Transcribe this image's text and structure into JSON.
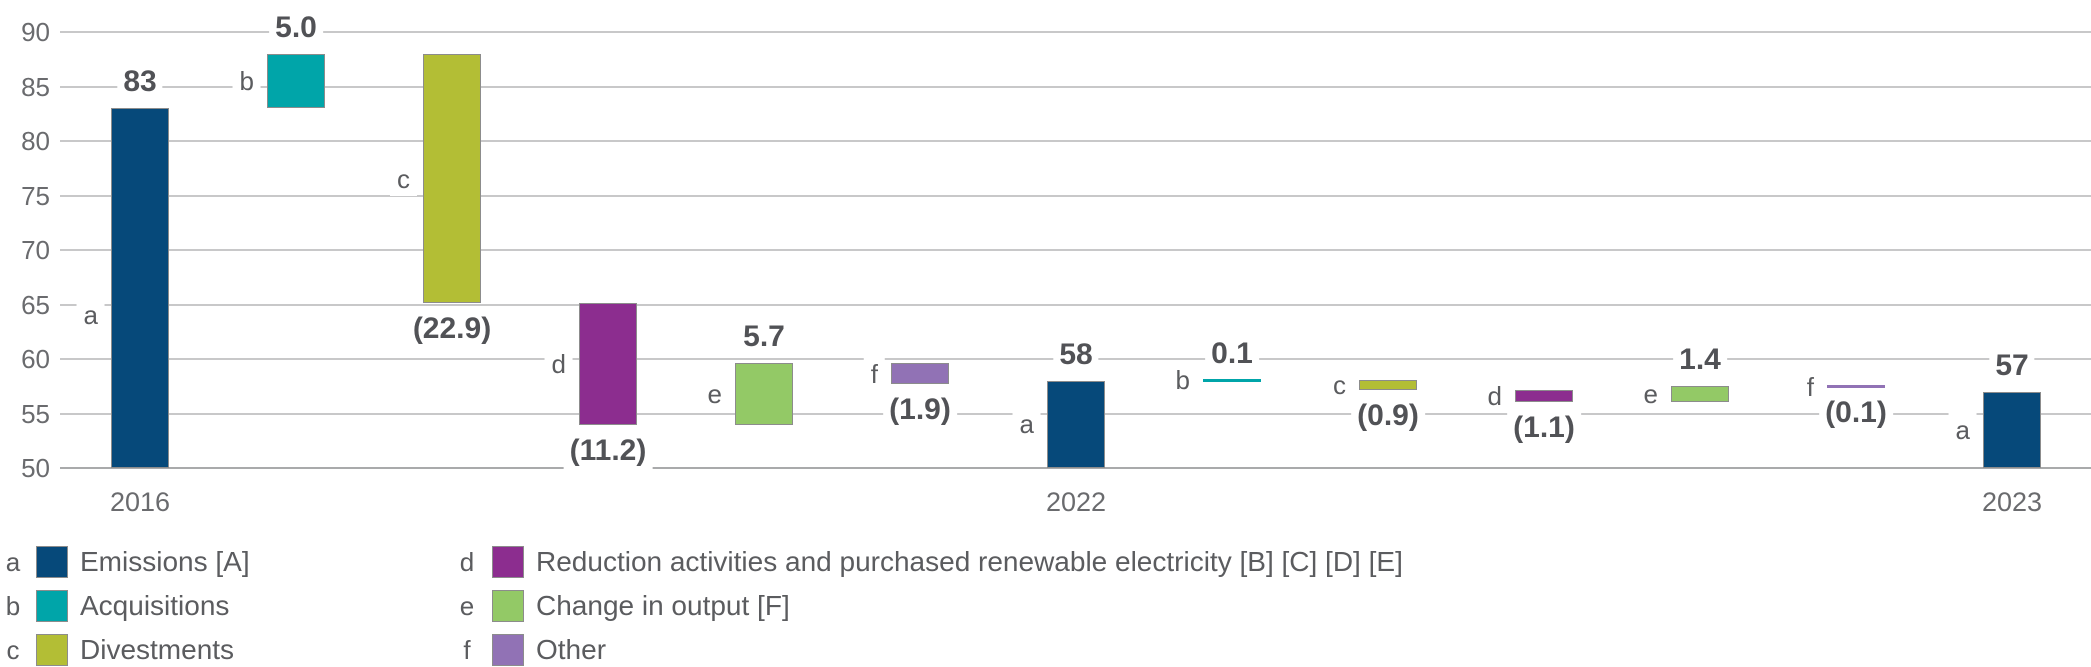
{
  "colors": {
    "background": "#FFFFFF",
    "grid": "#C8C8C9",
    "baseline": "#A9AAAB",
    "bar_border": "#8C8C8C",
    "tick_text": "#6A6B6E",
    "year_text": "#6A6B6E",
    "value_text": "#515256",
    "letter_text": "#5B5C5F",
    "legend_text": "#5B5C5F"
  },
  "chart_data": {
    "type": "waterfall",
    "title": "",
    "xlabel": "",
    "ylabel": "",
    "ylim": [
      50,
      90
    ],
    "yticks": [
      90,
      85,
      80,
      75,
      70,
      65,
      60,
      55,
      50
    ],
    "grid": true,
    "legend_position": "bottom",
    "series": {
      "a": {
        "name": "Emissions [A]",
        "color": "#06497A"
      },
      "b": {
        "name": "Acquisitions",
        "color": "#00A5A9"
      },
      "c": {
        "name": "Divestments",
        "color": "#B3BE35"
      },
      "d": {
        "name": "Reduction activities and purchased renewable electricity [B] [C] [D] [E]",
        "color": "#8C2D8F"
      },
      "e": {
        "name": "Change in output [F]",
        "color": "#93C966"
      },
      "f": {
        "name": "Other",
        "color": "#9172B5"
      }
    },
    "bars": [
      {
        "letter": "a",
        "value": 83,
        "from": 50,
        "to": 83,
        "label": "83",
        "label_pos": "above",
        "year": "2016",
        "letter_v": 64
      },
      {
        "letter": "b",
        "value": 5.0,
        "from": 83,
        "to": 88,
        "label": "5.0",
        "label_pos": "above"
      },
      {
        "letter": "c",
        "value": -22.9,
        "from": 88,
        "to": 65.1,
        "label": "(22.9)",
        "label_pos": "below"
      },
      {
        "letter": "d",
        "value": -11.2,
        "from": 65.1,
        "to": 53.9,
        "label": "(11.2)",
        "label_pos": "below"
      },
      {
        "letter": "e",
        "value": 5.7,
        "from": 53.9,
        "to": 59.6,
        "label": "5.7",
        "label_pos": "above"
      },
      {
        "letter": "f",
        "value": -1.9,
        "from": 59.6,
        "to": 57.7,
        "label": "(1.9)",
        "label_pos": "below"
      },
      {
        "letter": "a",
        "value": 58,
        "from": 50,
        "to": 58,
        "label": "58",
        "label_pos": "above",
        "year": "2022"
      },
      {
        "letter": "b",
        "value": 0.1,
        "from": 58,
        "to": 58.1,
        "label": "0.1",
        "label_pos": "above",
        "thin": true
      },
      {
        "letter": "c",
        "value": -0.9,
        "from": 58.1,
        "to": 57.2,
        "label": "(0.9)",
        "label_pos": "below"
      },
      {
        "letter": "d",
        "value": -1.1,
        "from": 57.2,
        "to": 56.1,
        "label": "(1.1)",
        "label_pos": "below"
      },
      {
        "letter": "e",
        "value": 1.4,
        "from": 56.1,
        "to": 57.5,
        "label": "1.4",
        "label_pos": "above"
      },
      {
        "letter": "f",
        "value": -0.1,
        "from": 57.5,
        "to": 57.4,
        "label": "(0.1)",
        "label_pos": "below",
        "thin": true
      },
      {
        "letter": "a",
        "value": 57,
        "from": 50,
        "to": 57,
        "label": "57",
        "label_pos": "above",
        "year": "2023"
      }
    ],
    "legend": [
      {
        "key": "a",
        "label": "Emissions [A]"
      },
      {
        "key": "b",
        "label": "Acquisitions"
      },
      {
        "key": "c",
        "label": "Divestments"
      },
      {
        "key": "d",
        "label": "Reduction activities and purchased renewable electricity [B] [C] [D] [E]"
      },
      {
        "key": "e",
        "label": "Change in output [F]"
      },
      {
        "key": "f",
        "label": "Other"
      }
    ]
  }
}
